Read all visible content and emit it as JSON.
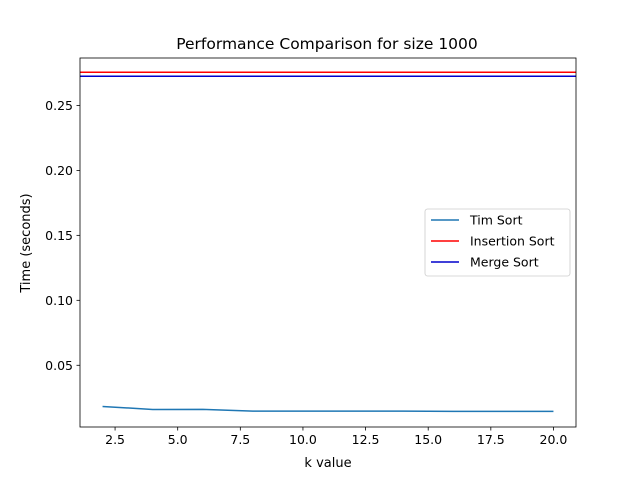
{
  "chart_data": {
    "type": "line",
    "title": "Performance Comparison for size 1000",
    "xlabel": "k value",
    "ylabel": "Time (seconds)",
    "xlim": [
      1.1,
      20.9
    ],
    "ylim": [
      0.0025,
      0.2865
    ],
    "xticks": [
      2.5,
      5.0,
      7.5,
      10.0,
      12.5,
      15.0,
      17.5,
      20.0
    ],
    "xtick_labels": [
      "2.5",
      "5.0",
      "7.5",
      "10.0",
      "12.5",
      "15.0",
      "17.5",
      "20.0"
    ],
    "yticks": [
      0.05,
      0.1,
      0.15,
      0.2,
      0.25
    ],
    "ytick_labels": [
      "0.05",
      "0.10",
      "0.15",
      "0.20",
      "0.25"
    ],
    "grid": false,
    "legend_position": "center-right",
    "series": [
      {
        "name": "Tim Sort",
        "kind": "line",
        "color": "#1f77b4",
        "x": [
          2,
          4,
          6,
          8,
          10,
          12,
          14,
          16,
          18,
          20
        ],
        "y": [
          0.0183,
          0.016,
          0.0161,
          0.0147,
          0.0147,
          0.0147,
          0.0147,
          0.0145,
          0.0145,
          0.0145
        ]
      },
      {
        "name": "Insertion Sort",
        "kind": "hline",
        "color": "#ff0000",
        "y": 0.2755
      },
      {
        "name": "Merge Sort",
        "kind": "hline",
        "color": "#0000cc",
        "y": 0.2725
      }
    ]
  }
}
